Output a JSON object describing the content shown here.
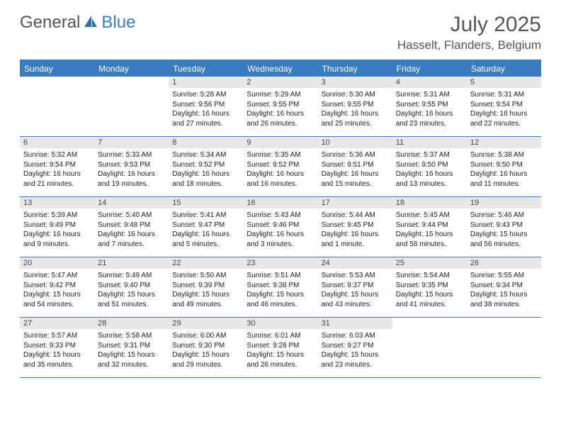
{
  "logo": {
    "text1": "General",
    "text2": "Blue"
  },
  "title": "July 2025",
  "location": "Hasselt, Flanders, Belgium",
  "colors": {
    "accent": "#3b7bbf",
    "header_text": "#555555",
    "day_num_bg": "#e8e8e8",
    "body_text": "#222222",
    "white": "#ffffff"
  },
  "day_headers": [
    "Sunday",
    "Monday",
    "Tuesday",
    "Wednesday",
    "Thursday",
    "Friday",
    "Saturday"
  ],
  "weeks": [
    [
      {
        "n": "",
        "sr": "",
        "ss": "",
        "dl": ""
      },
      {
        "n": "",
        "sr": "",
        "ss": "",
        "dl": ""
      },
      {
        "n": "1",
        "sr": "Sunrise: 5:28 AM",
        "ss": "Sunset: 9:56 PM",
        "dl": "Daylight: 16 hours and 27 minutes."
      },
      {
        "n": "2",
        "sr": "Sunrise: 5:29 AM",
        "ss": "Sunset: 9:55 PM",
        "dl": "Daylight: 16 hours and 26 minutes."
      },
      {
        "n": "3",
        "sr": "Sunrise: 5:30 AM",
        "ss": "Sunset: 9:55 PM",
        "dl": "Daylight: 16 hours and 25 minutes."
      },
      {
        "n": "4",
        "sr": "Sunrise: 5:31 AM",
        "ss": "Sunset: 9:55 PM",
        "dl": "Daylight: 16 hours and 23 minutes."
      },
      {
        "n": "5",
        "sr": "Sunrise: 5:31 AM",
        "ss": "Sunset: 9:54 PM",
        "dl": "Daylight: 16 hours and 22 minutes."
      }
    ],
    [
      {
        "n": "6",
        "sr": "Sunrise: 5:32 AM",
        "ss": "Sunset: 9:54 PM",
        "dl": "Daylight: 16 hours and 21 minutes."
      },
      {
        "n": "7",
        "sr": "Sunrise: 5:33 AM",
        "ss": "Sunset: 9:53 PM",
        "dl": "Daylight: 16 hours and 19 minutes."
      },
      {
        "n": "8",
        "sr": "Sunrise: 5:34 AM",
        "ss": "Sunset: 9:52 PM",
        "dl": "Daylight: 16 hours and 18 minutes."
      },
      {
        "n": "9",
        "sr": "Sunrise: 5:35 AM",
        "ss": "Sunset: 9:52 PM",
        "dl": "Daylight: 16 hours and 16 minutes."
      },
      {
        "n": "10",
        "sr": "Sunrise: 5:36 AM",
        "ss": "Sunset: 9:51 PM",
        "dl": "Daylight: 16 hours and 15 minutes."
      },
      {
        "n": "11",
        "sr": "Sunrise: 5:37 AM",
        "ss": "Sunset: 9:50 PM",
        "dl": "Daylight: 16 hours and 13 minutes."
      },
      {
        "n": "12",
        "sr": "Sunrise: 5:38 AM",
        "ss": "Sunset: 9:50 PM",
        "dl": "Daylight: 16 hours and 11 minutes."
      }
    ],
    [
      {
        "n": "13",
        "sr": "Sunrise: 5:39 AM",
        "ss": "Sunset: 9:49 PM",
        "dl": "Daylight: 16 hours and 9 minutes."
      },
      {
        "n": "14",
        "sr": "Sunrise: 5:40 AM",
        "ss": "Sunset: 9:48 PM",
        "dl": "Daylight: 16 hours and 7 minutes."
      },
      {
        "n": "15",
        "sr": "Sunrise: 5:41 AM",
        "ss": "Sunset: 9:47 PM",
        "dl": "Daylight: 16 hours and 5 minutes."
      },
      {
        "n": "16",
        "sr": "Sunrise: 5:43 AM",
        "ss": "Sunset: 9:46 PM",
        "dl": "Daylight: 16 hours and 3 minutes."
      },
      {
        "n": "17",
        "sr": "Sunrise: 5:44 AM",
        "ss": "Sunset: 9:45 PM",
        "dl": "Daylight: 16 hours and 1 minute."
      },
      {
        "n": "18",
        "sr": "Sunrise: 5:45 AM",
        "ss": "Sunset: 9:44 PM",
        "dl": "Daylight: 15 hours and 58 minutes."
      },
      {
        "n": "19",
        "sr": "Sunrise: 5:46 AM",
        "ss": "Sunset: 9:43 PM",
        "dl": "Daylight: 15 hours and 56 minutes."
      }
    ],
    [
      {
        "n": "20",
        "sr": "Sunrise: 5:47 AM",
        "ss": "Sunset: 9:42 PM",
        "dl": "Daylight: 15 hours and 54 minutes."
      },
      {
        "n": "21",
        "sr": "Sunrise: 5:49 AM",
        "ss": "Sunset: 9:40 PM",
        "dl": "Daylight: 15 hours and 51 minutes."
      },
      {
        "n": "22",
        "sr": "Sunrise: 5:50 AM",
        "ss": "Sunset: 9:39 PM",
        "dl": "Daylight: 15 hours and 49 minutes."
      },
      {
        "n": "23",
        "sr": "Sunrise: 5:51 AM",
        "ss": "Sunset: 9:38 PM",
        "dl": "Daylight: 15 hours and 46 minutes."
      },
      {
        "n": "24",
        "sr": "Sunrise: 5:53 AM",
        "ss": "Sunset: 9:37 PM",
        "dl": "Daylight: 15 hours and 43 minutes."
      },
      {
        "n": "25",
        "sr": "Sunrise: 5:54 AM",
        "ss": "Sunset: 9:35 PM",
        "dl": "Daylight: 15 hours and 41 minutes."
      },
      {
        "n": "26",
        "sr": "Sunrise: 5:55 AM",
        "ss": "Sunset: 9:34 PM",
        "dl": "Daylight: 15 hours and 38 minutes."
      }
    ],
    [
      {
        "n": "27",
        "sr": "Sunrise: 5:57 AM",
        "ss": "Sunset: 9:33 PM",
        "dl": "Daylight: 15 hours and 35 minutes."
      },
      {
        "n": "28",
        "sr": "Sunrise: 5:58 AM",
        "ss": "Sunset: 9:31 PM",
        "dl": "Daylight: 15 hours and 32 minutes."
      },
      {
        "n": "29",
        "sr": "Sunrise: 6:00 AM",
        "ss": "Sunset: 9:30 PM",
        "dl": "Daylight: 15 hours and 29 minutes."
      },
      {
        "n": "30",
        "sr": "Sunrise: 6:01 AM",
        "ss": "Sunset: 9:28 PM",
        "dl": "Daylight: 15 hours and 26 minutes."
      },
      {
        "n": "31",
        "sr": "Sunrise: 6:03 AM",
        "ss": "Sunset: 9:27 PM",
        "dl": "Daylight: 15 hours and 23 minutes."
      },
      {
        "n": "",
        "sr": "",
        "ss": "",
        "dl": ""
      },
      {
        "n": "",
        "sr": "",
        "ss": "",
        "dl": ""
      }
    ]
  ]
}
